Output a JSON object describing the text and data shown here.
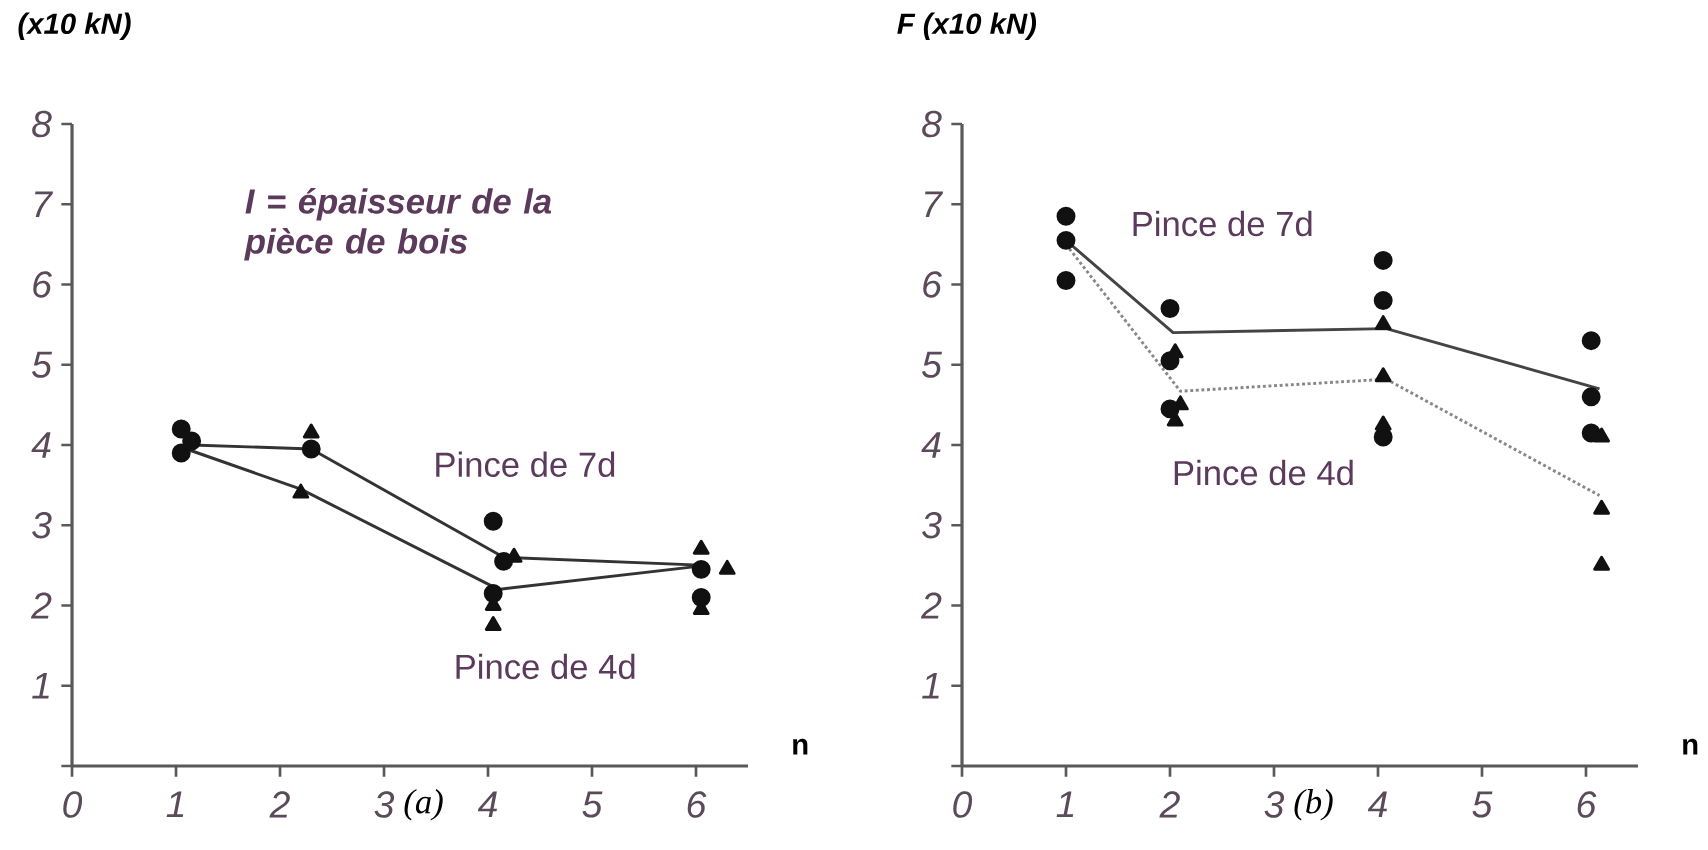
{
  "chart_data": [
    {
      "type": "line",
      "title": "(a)",
      "xlabel": "n",
      "ylabel": "(x10 kN)",
      "xlim": [
        0,
        6.5
      ],
      "ylim": [
        0,
        8
      ],
      "xticks": [
        0,
        1,
        2,
        3,
        4,
        5,
        6
      ],
      "yticks": [
        {
          "value": 0,
          "label": null
        },
        1,
        2,
        3,
        4,
        5,
        6,
        7,
        8
      ],
      "grid": false,
      "annotations": [
        "I = épaisseur de la pièce de bois"
      ],
      "series": [
        {
          "name": "Pince de 7d",
          "color": "#333333",
          "marker": "none",
          "line_style": "solid",
          "x": [
            1.15,
            2.3,
            4.15,
            6.1
          ],
          "values": [
            4.0,
            3.95,
            2.6,
            2.5
          ]
        },
        {
          "name": "Pince de 4d",
          "color": "#333333",
          "marker": "none",
          "line_style": "solid",
          "x": [
            1.1,
            2.2,
            4.1,
            6.1
          ],
          "values": [
            3.95,
            3.45,
            2.2,
            2.5
          ]
        },
        {
          "type": "scatter",
          "color": "#111111",
          "marker": "circle",
          "x": [
            1.05,
            1.05,
            1.15,
            2.3,
            4.05,
            4.05,
            4.15,
            6.05,
            6.05
          ],
          "values": [
            4.2,
            3.9,
            4.05,
            3.95,
            3.05,
            2.15,
            2.55,
            2.45,
            2.1
          ]
        },
        {
          "type": "scatter",
          "color": "#111111",
          "marker": "triangle",
          "x": [
            2.3,
            2.2,
            4.25,
            4.05,
            4.05,
            6.05,
            6.3,
            6.05
          ],
          "values": [
            4.15,
            3.4,
            2.6,
            2.0,
            1.75,
            2.7,
            2.45,
            1.95
          ]
        }
      ]
    },
    {
      "type": "line",
      "title": "(b)",
      "xlabel": "n",
      "ylabel": "F (x10 kN)",
      "xlim": [
        0,
        6.5
      ],
      "ylim": [
        0,
        8
      ],
      "xticks": [
        0,
        1,
        2,
        3,
        4,
        5,
        6
      ],
      "yticks": [
        {
          "value": 0,
          "label": null
        },
        1,
        2,
        3,
        4,
        5,
        6,
        7,
        8
      ],
      "grid": false,
      "series": [
        {
          "name": "Pince de 7d",
          "color": "#444444",
          "marker": "none",
          "line_style": "solid",
          "x": [
            1.0,
            2.03,
            4.08,
            6.13
          ],
          "values": [
            6.55,
            5.4,
            5.45,
            4.7
          ]
        },
        {
          "name": "Pince de 4d",
          "color": "#888888",
          "marker": "none",
          "line_style": "dotted",
          "x": [
            1.0,
            2.1,
            4.08,
            6.13
          ],
          "values": [
            6.5,
            4.67,
            4.82,
            3.37
          ]
        },
        {
          "type": "scatter",
          "color": "#111111",
          "marker": "circle",
          "x": [
            1.0,
            1.0,
            1.0,
            2.0,
            2.0,
            2.0,
            4.05,
            4.05,
            4.05,
            6.05,
            6.05,
            6.05
          ],
          "values": [
            6.85,
            6.55,
            6.05,
            5.7,
            5.05,
            4.45,
            6.3,
            5.8,
            4.1,
            5.3,
            4.6,
            4.15
          ]
        },
        {
          "type": "scatter",
          "color": "#111111",
          "marker": "triangle",
          "x": [
            2.05,
            2.1,
            2.05,
            4.05,
            4.05,
            4.05,
            6.15,
            6.15,
            6.15
          ],
          "values": [
            5.15,
            4.5,
            4.3,
            5.5,
            4.85,
            4.25,
            4.1,
            3.2,
            2.5
          ]
        }
      ]
    }
  ]
}
